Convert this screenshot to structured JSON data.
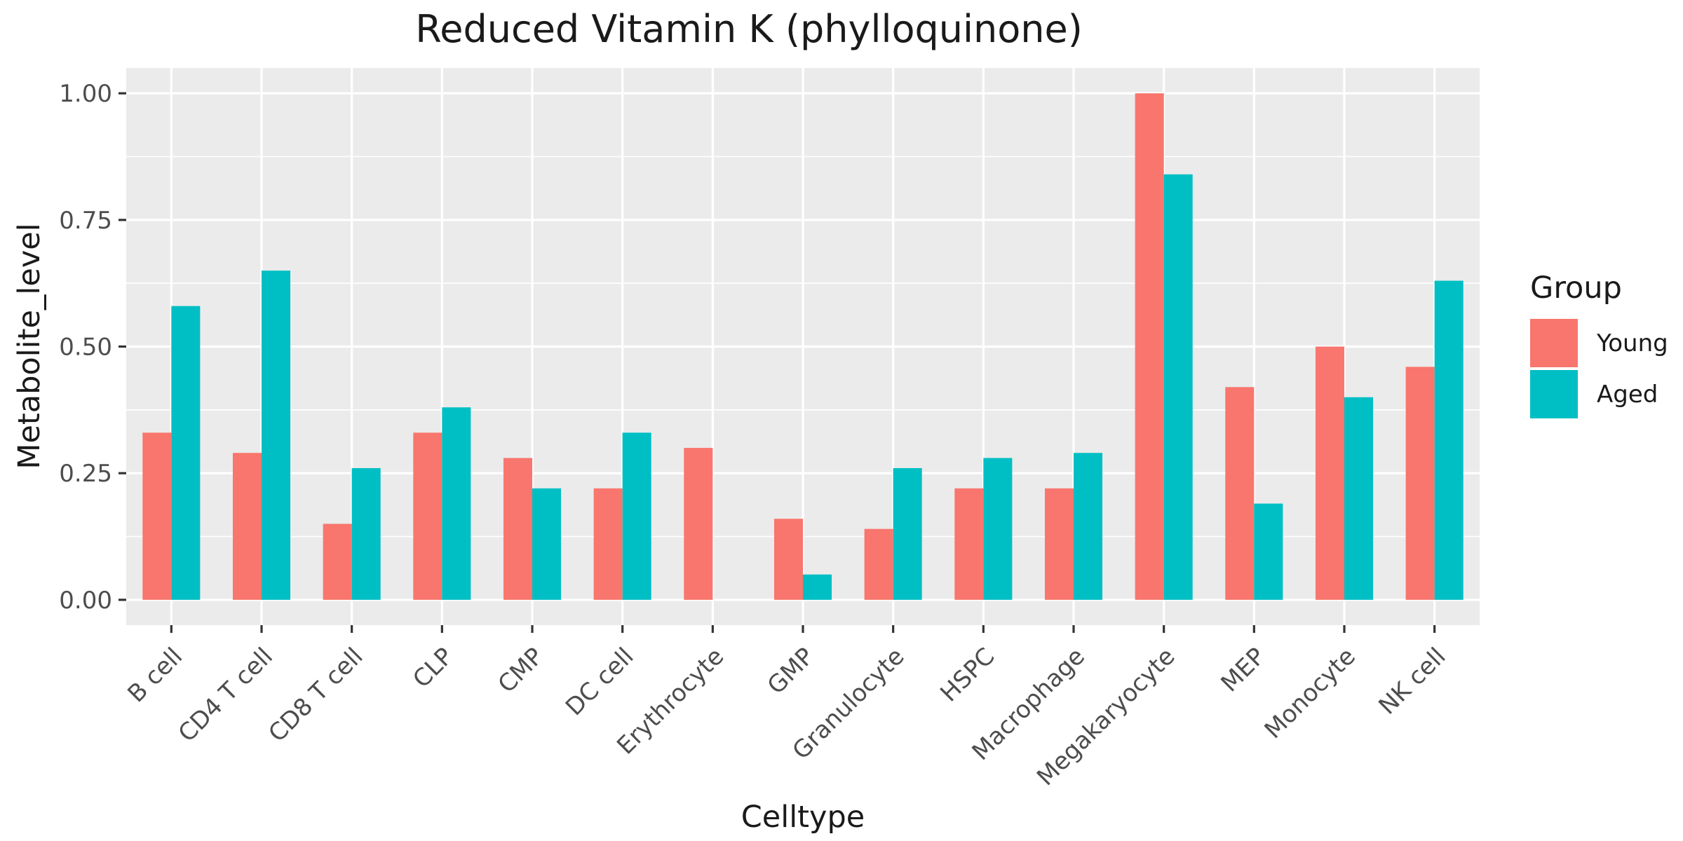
{
  "chart_data": {
    "type": "bar",
    "title": "Reduced Vitamin K (phylloquinone)",
    "xlabel": "Celltype",
    "ylabel": "Metabolite_level",
    "categories": [
      "B cell",
      "CD4 T cell",
      "CD8 T cell",
      "CLP",
      "CMP",
      "DC cell",
      "Erythrocyte",
      "GMP",
      "Granulocyte",
      "HSPC",
      "Macrophage",
      "Megakaryocyte",
      "MEP",
      "Monocyte",
      "NK cell"
    ],
    "series": [
      {
        "name": "Young",
        "color": "#F8766D",
        "values": [
          0.33,
          0.29,
          0.15,
          0.33,
          0.28,
          0.22,
          0.3,
          0.16,
          0.14,
          0.22,
          0.22,
          1.0,
          0.42,
          0.5,
          0.46
        ]
      },
      {
        "name": "Aged",
        "color": "#00BFC4",
        "values": [
          0.58,
          0.65,
          0.26,
          0.38,
          0.22,
          0.33,
          null,
          0.05,
          0.26,
          0.28,
          0.29,
          0.84,
          0.19,
          0.4,
          0.63
        ]
      }
    ],
    "ylim": [
      -0.05,
      1.05
    ],
    "yticks": [
      0.0,
      0.25,
      0.5,
      0.75,
      1.0
    ],
    "ytick_labels": [
      "0.00",
      "0.25",
      "0.50",
      "0.75",
      "1.00"
    ],
    "legend": {
      "title": "Group",
      "position": "right"
    },
    "grid": true,
    "panel_background": "#EBEBEB",
    "grid_color": "#FFFFFF"
  }
}
